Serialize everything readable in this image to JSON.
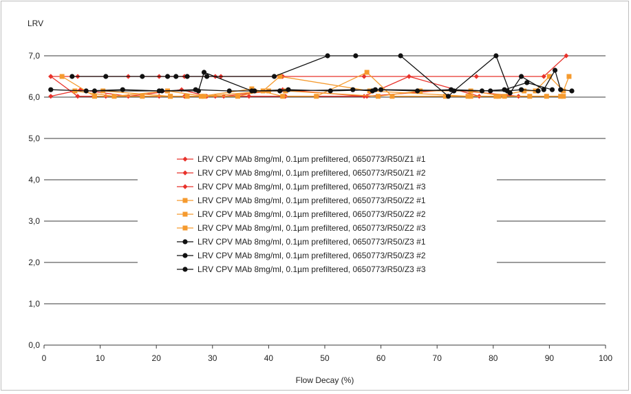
{
  "chart_data": {
    "type": "line",
    "title": "",
    "xlabel": "Flow Decay (%)",
    "ylabel": "LRV",
    "xlim": [
      0,
      100
    ],
    "ylim": [
      0,
      7
    ],
    "xticks": [
      "0",
      "10",
      "20",
      "30",
      "40",
      "50",
      "60",
      "70",
      "80",
      "90",
      "100"
    ],
    "yticks": [
      "0,0",
      "1,0",
      "2,0",
      "3,0",
      "4,0",
      "5,0",
      "6,0",
      "7,0"
    ],
    "grid": "horizontal",
    "legend_position": "center",
    "colors": {
      "red": "#e8322b",
      "orange": "#f59a2e",
      "black": "#111111",
      "grid": "#3a3a3a"
    },
    "series": [
      {
        "name": "LRV CPV MAb 8mg/ml, 0.1µm prefiltered, 0650773/R50/Z1 #1",
        "color": "#e8322b",
        "marker": "diamond",
        "x": [
          1.2,
          6.5,
          15,
          24.5,
          29,
          32,
          42.5,
          57,
          65,
          77.5,
          89.5
        ],
        "y": [
          6.02,
          6.18,
          6.02,
          6.18,
          6.02,
          6.02,
          6.18,
          6.02,
          6.5,
          6.02,
          6.02
        ]
      },
      {
        "name": "LRV CPV MAb 8mg/ml, 0.1µm prefiltered, 0650773/R50/Z1 #2",
        "color": "#e8322b",
        "marker": "diamond",
        "x": [
          1.2,
          6,
          11,
          20.5,
          25,
          30.5,
          36.5,
          43,
          57.5,
          72.5,
          84.5
        ],
        "y": [
          6.5,
          6.02,
          6.02,
          6.02,
          6.02,
          6.02,
          6.02,
          6.02,
          6.02,
          6.18,
          6.02
        ]
      },
      {
        "name": "LRV CPV MAb 8mg/ml, 0.1µm prefiltered, 0650773/R50/Z1 #3",
        "color": "#e8322b",
        "marker": "diamond",
        "x": [
          1.2,
          6,
          11,
          15,
          20.5,
          25,
          29,
          30.5,
          31.5,
          42.5,
          57,
          77,
          89,
          93
        ],
        "y": [
          6.5,
          6.5,
          6.5,
          6.5,
          6.5,
          6.5,
          6.5,
          6.5,
          6.5,
          6.5,
          6.5,
          6.5,
          6.5,
          7.0
        ]
      },
      {
        "name": "LRV CPV MAb 8mg/ml, 0.1µm prefiltered, 0650773/R50/Z2 #1",
        "color": "#f59a2e",
        "marker": "square",
        "x": [
          3.2,
          9,
          17.5,
          22.5,
          28,
          37,
          42.5,
          48.5,
          57.5,
          62,
          71.5,
          76,
          81,
          86.5,
          92.5
        ],
        "y": [
          6.5,
          6.02,
          6.02,
          6.02,
          6.02,
          6.2,
          6.02,
          6.02,
          6.6,
          6.02,
          6.02,
          6.02,
          6.02,
          6.02,
          6.02
        ]
      },
      {
        "name": "LRV CPV MAb 8mg/ml, 0.1µm prefiltered, 0650773/R50/Z2 #2",
        "color": "#f59a2e",
        "marker": "square",
        "x": [
          5.5,
          12.5,
          22,
          28.5,
          40,
          43,
          59.5,
          67,
          76,
          82,
          89.5,
          92
        ],
        "y": [
          6.15,
          6.02,
          6.15,
          6.02,
          6.15,
          6.15,
          6.02,
          6.15,
          6.15,
          6.02,
          6.02,
          6.02
        ]
      },
      {
        "name": "LRV CPV MAb 8mg/ml, 0.1µm prefiltered, 0650773/R50/Z2 #3",
        "color": "#f59a2e",
        "marker": "square",
        "x": [
          10.5,
          22.5,
          25.5,
          34.5,
          39,
          42,
          58,
          75.5,
          80.5,
          85.5,
          87.5,
          90,
          92.5,
          93.5
        ],
        "y": [
          6.15,
          6.02,
          6.02,
          6.02,
          6.15,
          6.5,
          6.15,
          6.02,
          6.02,
          6.15,
          6.15,
          6.5,
          6.15,
          6.5
        ]
      },
      {
        "name": "LRV CPV MAb 8mg/ml, 0.1µm prefiltered, 0650773/R50/Z3 #1",
        "color": "#111111",
        "marker": "circle",
        "x": [
          1.2,
          7.5,
          14,
          21,
          27,
          33,
          37.5,
          43.5,
          51,
          59,
          66.5,
          72.5,
          79.5,
          82.5,
          85,
          88
        ],
        "y": [
          6.18,
          6.15,
          6.18,
          6.15,
          6.18,
          6.15,
          6.15,
          6.18,
          6.15,
          6.18,
          6.15,
          6.18,
          6.15,
          6.15,
          6.18,
          6.15
        ]
      },
      {
        "name": "LRV CPV MAb 8mg/ml, 0.1µm prefiltered, 0650773/R50/Z3 #2",
        "color": "#111111",
        "marker": "circle",
        "x": [
          5,
          11,
          17.5,
          22,
          23.5,
          25.5,
          29,
          41,
          50.5,
          55.5,
          63.5,
          72,
          73,
          80.5,
          83,
          85,
          89,
          91,
          92,
          94
        ],
        "y": [
          6.5,
          6.5,
          6.5,
          6.5,
          6.5,
          6.5,
          6.5,
          6.5,
          7.0,
          7.0,
          7.0,
          6.02,
          6.15,
          7.0,
          6.1,
          6.5,
          6.18,
          6.65,
          6.18,
          6.15
        ]
      },
      {
        "name": "LRV CPV MAb 8mg/ml, 0.1µm prefiltered, 0650773/R50/Z3 #3",
        "color": "#111111",
        "marker": "circle",
        "x": [
          9,
          20.5,
          27.5,
          28.5,
          37,
          42,
          55,
          58.5,
          60,
          78,
          82,
          86,
          90.5
        ],
        "y": [
          6.15,
          6.15,
          6.15,
          6.6,
          6.15,
          6.15,
          6.18,
          6.15,
          6.18,
          6.15,
          6.18,
          6.35,
          6.18
        ]
      }
    ]
  }
}
